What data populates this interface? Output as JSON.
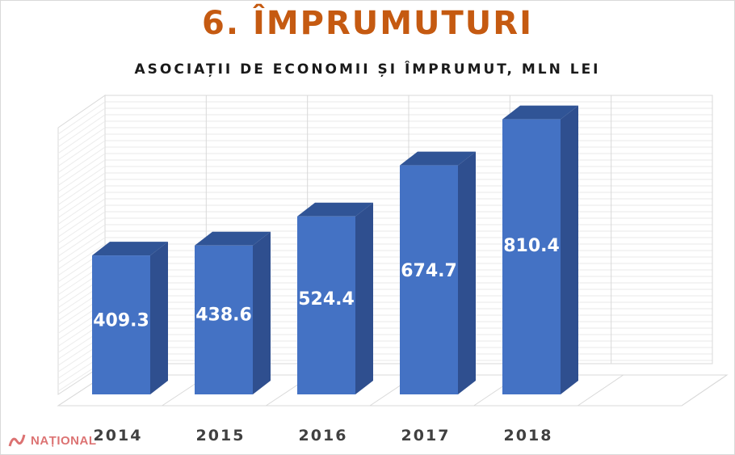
{
  "title": "6. ÎMPRUMUTURI",
  "subtitle": "ASOCIAȚII DE ECONOMII ȘI ÎMPRUMUT, MLN LEI",
  "watermark": "NAȚIONAL",
  "colors": {
    "title": "#c55a11",
    "bar_front": "#4472c4",
    "bar_side": "#2f4f8f",
    "bar_top": "#305496",
    "grid": "#d9d9d9"
  },
  "chart_data": {
    "type": "bar",
    "style": "3d-column",
    "categories": [
      "2014",
      "2015",
      "2016",
      "2017",
      "2018"
    ],
    "values": [
      409.3,
      438.6,
      524.4,
      674.7,
      810.4
    ],
    "value_labels": [
      "409.3",
      "438.6",
      "524.4",
      "674.7",
      "810.4"
    ],
    "title": "6. ÎMPRUMUTURI",
    "subtitle": "ASOCIAȚII DE ECONOMII ȘI ÎMPRUMUT, MLN LEI",
    "ylim": [
      0,
      1000
    ],
    "grid": true,
    "legend": "none"
  }
}
